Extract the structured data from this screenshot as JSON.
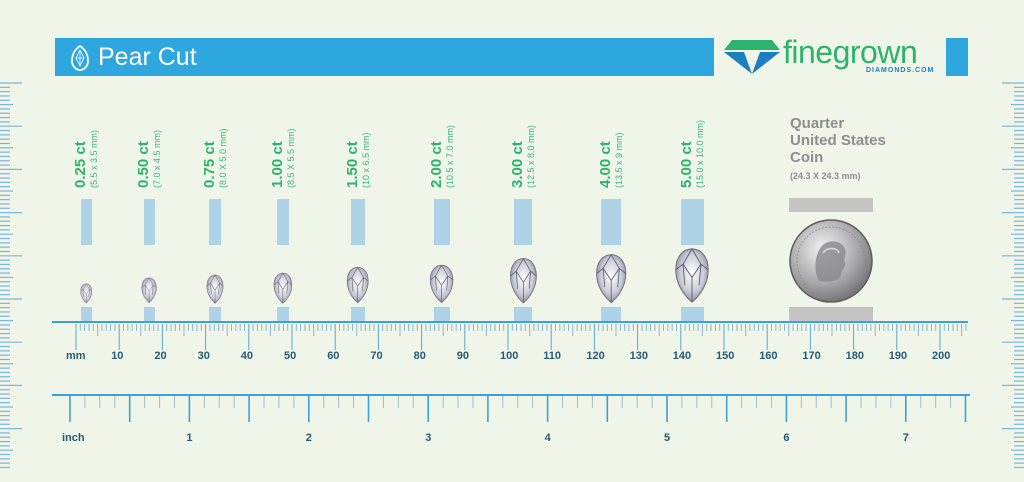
{
  "header": {
    "title": "Pear Cut",
    "icon": "pear-diamond-icon",
    "bar_color": "#2ea6de"
  },
  "brand": {
    "name": "finegrown",
    "sub": "DIAMONDS.COM",
    "name_color": "#2db36b",
    "sub_color": "#1c7fbf"
  },
  "stones": [
    {
      "carat": "0.25 ct",
      "dims": "(5.5 x 3.5 mm)",
      "length_mm": 5.5,
      "width_mm": 3.5
    },
    {
      "carat": "0.50 ct",
      "dims": "(7.0 x 4.5 mm)",
      "length_mm": 7.0,
      "width_mm": 4.5
    },
    {
      "carat": "0.75 ct",
      "dims": "(8.0 X 5.0 mm)",
      "length_mm": 8.0,
      "width_mm": 5.0
    },
    {
      "carat": "1.00 ct",
      "dims": "(8.5 X 5.5 mm)",
      "length_mm": 8.5,
      "width_mm": 5.5
    },
    {
      "carat": "1.50 ct",
      "dims": "(10 x 6.5 mm)",
      "length_mm": 10.0,
      "width_mm": 6.5
    },
    {
      "carat": "2.00 ct",
      "dims": "(10.5 x 7.0 mm)",
      "length_mm": 10.5,
      "width_mm": 7.0
    },
    {
      "carat": "3.00 ct",
      "dims": "(12.5 x 8.0 mm)",
      "length_mm": 12.5,
      "width_mm": 8.0
    },
    {
      "carat": "4.00 ct",
      "dims": "(13.5 x 9 mm)",
      "length_mm": 13.5,
      "width_mm": 9.0
    },
    {
      "carat": "5.00 ct",
      "dims": "(15.0 x 10.0 mm)",
      "length_mm": 15.0,
      "width_mm": 10.0
    }
  ],
  "coin": {
    "line1": "Quarter",
    "line2": "United States",
    "line3": "Coin",
    "dims": "(24.3 X 24.3 mm)",
    "diameter_mm": 24.3
  },
  "mm_ruler": {
    "unit_label": "mm",
    "ticks": [
      "10",
      "20",
      "30",
      "40",
      "50",
      "60",
      "70",
      "80",
      "90",
      "100",
      "110",
      "120",
      "130",
      "140",
      "150",
      "160",
      "170",
      "180",
      "190",
      "200"
    ]
  },
  "inch_ruler": {
    "unit_label": "inch",
    "ticks": [
      "1",
      "2",
      "3",
      "4",
      "5",
      "6",
      "7"
    ]
  },
  "chart_data": {
    "type": "table",
    "title": "Pear Cut",
    "columns": [
      "carat",
      "length_mm",
      "width_mm"
    ],
    "rows": [
      [
        "0.25 ct",
        5.5,
        3.5
      ],
      [
        "0.50 ct",
        7.0,
        4.5
      ],
      [
        "0.75 ct",
        8.0,
        5.0
      ],
      [
        "1.00 ct",
        8.5,
        5.5
      ],
      [
        "1.50 ct",
        10.0,
        6.5
      ],
      [
        "2.00 ct",
        10.5,
        7.0
      ],
      [
        "3.00 ct",
        12.5,
        8.0
      ],
      [
        "4.00 ct",
        13.5,
        9.0
      ],
      [
        "5.00 ct",
        15.0,
        10.0
      ]
    ],
    "reference": {
      "label": "Quarter United States Coin",
      "length_mm": 24.3,
      "width_mm": 24.3
    },
    "xlabel": "mm / inch"
  }
}
